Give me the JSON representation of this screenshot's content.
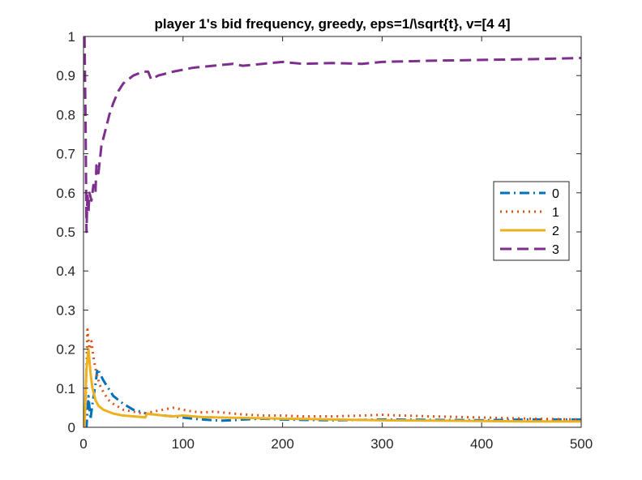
{
  "chart_data": {
    "type": "line",
    "title": "player 1's bid frequency, greedy, eps=1/\\sqrt{t}, v=[4 4]",
    "xlabel": "",
    "ylabel": "",
    "xlim": [
      0,
      500
    ],
    "ylim": [
      0,
      1
    ],
    "xticks": [
      0,
      100,
      200,
      300,
      400,
      500
    ],
    "yticks": [
      0,
      0.1,
      0.2,
      0.3,
      0.4,
      0.5,
      0.6,
      0.7,
      0.8,
      0.9,
      1
    ],
    "xtick_labels": [
      "0",
      "100",
      "200",
      "300",
      "400",
      "500"
    ],
    "ytick_labels": [
      "0",
      "0.1",
      "0.2",
      "0.3",
      "0.4",
      "0.5",
      "0.6",
      "0.7",
      "0.8",
      "0.9",
      "1"
    ],
    "grid": false,
    "legend_position": "right",
    "series": [
      {
        "name": "0",
        "color": "#0072BD",
        "style": "dash-dot",
        "points": [
          [
            1,
            0
          ],
          [
            3,
            0
          ],
          [
            5,
            0.08
          ],
          [
            7,
            0.02
          ],
          [
            9,
            0.06
          ],
          [
            12,
            0.11
          ],
          [
            14,
            0.15
          ],
          [
            16,
            0.14
          ],
          [
            20,
            0.12
          ],
          [
            25,
            0.1
          ],
          [
            30,
            0.08
          ],
          [
            40,
            0.06
          ],
          [
            50,
            0.045
          ],
          [
            60,
            0.038
          ],
          [
            63,
            0.035
          ],
          [
            70,
            0.033
          ],
          [
            80,
            0.03
          ],
          [
            90,
            0.028
          ],
          [
            100,
            0.025
          ],
          [
            110,
            0.022
          ],
          [
            120,
            0.02
          ],
          [
            130,
            0.018
          ],
          [
            140,
            0.017
          ],
          [
            150,
            0.018
          ],
          [
            160,
            0.02
          ],
          [
            180,
            0.022
          ],
          [
            200,
            0.02
          ],
          [
            220,
            0.019
          ],
          [
            250,
            0.018
          ],
          [
            280,
            0.019
          ],
          [
            300,
            0.02
          ],
          [
            350,
            0.019
          ],
          [
            400,
            0.018
          ],
          [
            450,
            0.02
          ],
          [
            500,
            0.02
          ]
        ]
      },
      {
        "name": "1",
        "color": "#D95319",
        "style": "dotted",
        "points": [
          [
            1,
            0
          ],
          [
            2,
            0.05
          ],
          [
            4,
            0.25
          ],
          [
            6,
            0.2
          ],
          [
            8,
            0.22
          ],
          [
            10,
            0.18
          ],
          [
            12,
            0.15
          ],
          [
            14,
            0.13
          ],
          [
            16,
            0.11
          ],
          [
            20,
            0.09
          ],
          [
            25,
            0.07
          ],
          [
            30,
            0.06
          ],
          [
            40,
            0.045
          ],
          [
            50,
            0.04
          ],
          [
            60,
            0.035
          ],
          [
            70,
            0.04
          ],
          [
            80,
            0.045
          ],
          [
            90,
            0.05
          ],
          [
            100,
            0.045
          ],
          [
            110,
            0.04
          ],
          [
            120,
            0.038
          ],
          [
            130,
            0.04
          ],
          [
            140,
            0.038
          ],
          [
            150,
            0.035
          ],
          [
            160,
            0.033
          ],
          [
            180,
            0.03
          ],
          [
            200,
            0.03
          ],
          [
            220,
            0.028
          ],
          [
            250,
            0.028
          ],
          [
            280,
            0.03
          ],
          [
            300,
            0.032
          ],
          [
            320,
            0.03
          ],
          [
            350,
            0.028
          ],
          [
            400,
            0.025
          ],
          [
            450,
            0.022
          ],
          [
            500,
            0.02
          ]
        ]
      },
      {
        "name": "2",
        "color": "#EDB120",
        "style": "solid",
        "points": [
          [
            1,
            0
          ],
          [
            3,
            0.15
          ],
          [
            5,
            0.2
          ],
          [
            7,
            0.14
          ],
          [
            9,
            0.1
          ],
          [
            12,
            0.07
          ],
          [
            15,
            0.055
          ],
          [
            20,
            0.045
          ],
          [
            25,
            0.04
          ],
          [
            30,
            0.035
          ],
          [
            40,
            0.03
          ],
          [
            50,
            0.028
          ],
          [
            60,
            0.026
          ],
          [
            62,
            0.025
          ],
          [
            64,
            0.035
          ],
          [
            70,
            0.033
          ],
          [
            80,
            0.03
          ],
          [
            90,
            0.028
          ],
          [
            100,
            0.03
          ],
          [
            110,
            0.028
          ],
          [
            120,
            0.026
          ],
          [
            140,
            0.025
          ],
          [
            160,
            0.024
          ],
          [
            180,
            0.023
          ],
          [
            200,
            0.022
          ],
          [
            250,
            0.02
          ],
          [
            300,
            0.018
          ],
          [
            350,
            0.017
          ],
          [
            400,
            0.016
          ],
          [
            450,
            0.015
          ],
          [
            500,
            0.015
          ]
        ]
      },
      {
        "name": "3",
        "color": "#7E2F8E",
        "style": "dashed",
        "points": [
          [
            1,
            1
          ],
          [
            2,
            0.8
          ],
          [
            3,
            0.5
          ],
          [
            4,
            0.6
          ],
          [
            5,
            0.55
          ],
          [
            6,
            0.6
          ],
          [
            8,
            0.58
          ],
          [
            10,
            0.62
          ],
          [
            12,
            0.6
          ],
          [
            13,
            0.67
          ],
          [
            15,
            0.65
          ],
          [
            18,
            0.72
          ],
          [
            22,
            0.76
          ],
          [
            26,
            0.8
          ],
          [
            30,
            0.83
          ],
          [
            35,
            0.86
          ],
          [
            40,
            0.88
          ],
          [
            50,
            0.9
          ],
          [
            60,
            0.91
          ],
          [
            65,
            0.91
          ],
          [
            68,
            0.89
          ],
          [
            75,
            0.9
          ],
          [
            90,
            0.91
          ],
          [
            110,
            0.92
          ],
          [
            130,
            0.925
          ],
          [
            150,
            0.93
          ],
          [
            160,
            0.925
          ],
          [
            180,
            0.93
          ],
          [
            200,
            0.935
          ],
          [
            220,
            0.93
          ],
          [
            250,
            0.932
          ],
          [
            280,
            0.93
          ],
          [
            300,
            0.935
          ],
          [
            350,
            0.938
          ],
          [
            400,
            0.94
          ],
          [
            450,
            0.942
          ],
          [
            500,
            0.945
          ]
        ]
      }
    ]
  }
}
